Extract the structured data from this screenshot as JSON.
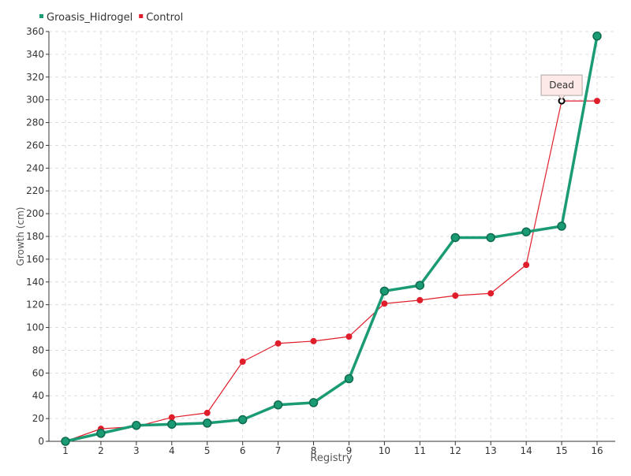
{
  "chart_data": {
    "type": "line",
    "categories": [
      "1",
      "2",
      "3",
      "4",
      "5",
      "6",
      "7",
      "8",
      "9",
      "10",
      "11",
      "12",
      "13",
      "14",
      "15",
      "16"
    ],
    "series": [
      {
        "name": "Groasis_Hidrogel",
        "color": "#1a9b73",
        "values": [
          0,
          7,
          14,
          15,
          16,
          19,
          32,
          34,
          55,
          132,
          137,
          179,
          179,
          184,
          189,
          356
        ]
      },
      {
        "name": "Control",
        "color": "#e01e2b",
        "values": [
          0,
          11,
          13,
          21,
          25,
          70,
          86,
          88,
          92,
          121,
          124,
          128,
          130,
          155,
          299,
          299
        ]
      }
    ],
    "xlabel": "Registry",
    "ylabel": "Growth (cm)",
    "ylim": [
      0,
      360
    ],
    "yticks": [
      0,
      20,
      40,
      60,
      80,
      100,
      120,
      140,
      160,
      180,
      200,
      220,
      240,
      260,
      280,
      300,
      320,
      340,
      360
    ],
    "grid": true,
    "legend_position": "top-left",
    "annotations": [
      {
        "series": "Control",
        "category": "15",
        "value": 299,
        "text": "Dead"
      }
    ]
  }
}
